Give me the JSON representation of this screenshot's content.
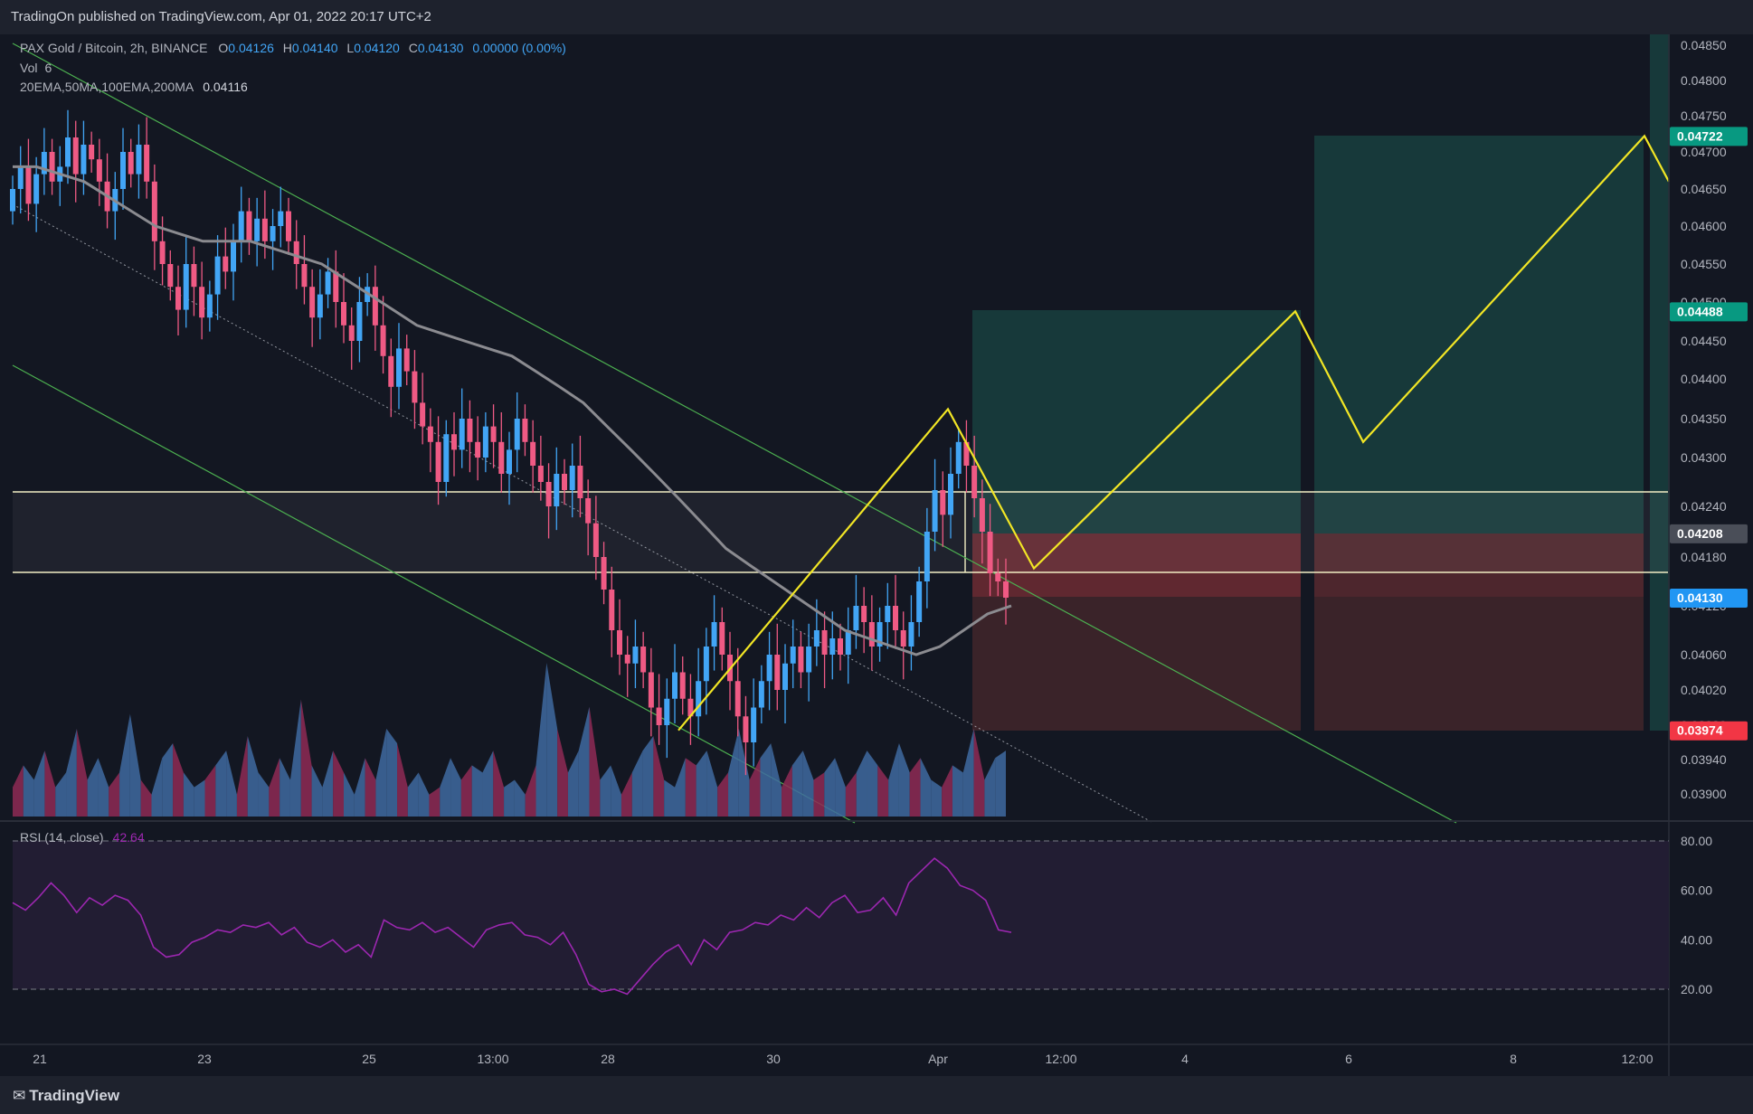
{
  "header": {
    "published": "TradingOn published on TradingView.com, Apr 01, 2022 20:17 UTC+2"
  },
  "legend": {
    "symbol": "PAX Gold / Bitcoin, 2h, BINANCE",
    "o_label": "O",
    "o_value": "0.04126",
    "h_label": "H",
    "h_value": "0.04140",
    "l_label": "L",
    "l_value": "0.04120",
    "c_label": "C",
    "c_value": "0.04130",
    "change": "0.00000 (0.00%)",
    "vol_label": "Vol",
    "vol_value": "6",
    "ma_label": "20EMA,50MA,100EMA,200MA",
    "ma_value": "0.04116",
    "rsi_label": "RSI (14, close)",
    "rsi_value": "42.64"
  },
  "footer": {
    "brand": "TradingView"
  },
  "colors": {
    "background": "#131722",
    "bull": "#42a5f5",
    "bear": "#ef5a84",
    "target_zone": "#17393a",
    "stop_zone": "#3a2329",
    "rsi_band": "#221d33",
    "rsi_line": "#9c27b0",
    "projection": "#f2e625",
    "channel": "#4caf50",
    "ma_line": "#8b8b90",
    "level_line": "#f2edc4"
  },
  "chart_data": [
    {
      "type": "candlestick",
      "title": "PAX Gold / Bitcoin, 2h, BINANCE",
      "x_ticks": [
        "21",
        "23",
        "25",
        "13:00",
        "28",
        "30",
        "Apr",
        "12:00",
        "4",
        "6",
        "8",
        "12:00"
      ],
      "y_ticks": [
        "0.04850",
        "0.04800",
        "0.04750",
        "0.04700",
        "0.04650",
        "0.04600",
        "0.04550",
        "0.04500",
        "0.04450",
        "0.04400",
        "0.04350",
        "0.04300",
        "0.04240",
        "0.04180",
        "0.04120",
        "0.04060",
        "0.04020",
        "0.03980",
        "0.03940",
        "0.03900"
      ],
      "ylim": [
        0.0387,
        0.0487
      ],
      "price_badges": [
        {
          "label": "0.04722",
          "color": "#089981"
        },
        {
          "label": "0.04488",
          "color": "#089981"
        },
        {
          "label": "0.04208",
          "color": "#4a4e58"
        },
        {
          "label": "0.04130",
          "color": "#2196f3"
        },
        {
          "label": "0.03974",
          "color": "#f23645"
        }
      ],
      "close_series": [
        0.0465,
        0.0468,
        0.0463,
        0.0467,
        0.047,
        0.0466,
        0.0468,
        0.0472,
        0.0467,
        0.0471,
        0.0469,
        0.0466,
        0.0462,
        0.0465,
        0.047,
        0.0467,
        0.0471,
        0.0466,
        0.0458,
        0.0455,
        0.0452,
        0.0449,
        0.0455,
        0.0452,
        0.0448,
        0.0451,
        0.0456,
        0.0454,
        0.0458,
        0.0462,
        0.0458,
        0.0461,
        0.0458,
        0.046,
        0.0462,
        0.0458,
        0.0455,
        0.0452,
        0.0448,
        0.0451,
        0.0454,
        0.045,
        0.0447,
        0.0445,
        0.045,
        0.0452,
        0.0447,
        0.0443,
        0.0439,
        0.0444,
        0.0441,
        0.0437,
        0.0434,
        0.0432,
        0.0427,
        0.0433,
        0.0431,
        0.0435,
        0.0432,
        0.043,
        0.0434,
        0.0432,
        0.0428,
        0.0431,
        0.0435,
        0.0432,
        0.0429,
        0.0427,
        0.0424,
        0.0428,
        0.0426,
        0.0429,
        0.0425,
        0.0422,
        0.0418,
        0.0414,
        0.0409,
        0.0406,
        0.0405,
        0.0407,
        0.0404,
        0.04,
        0.0398,
        0.0401,
        0.0404,
        0.0401,
        0.0399,
        0.0403,
        0.0407,
        0.041,
        0.0406,
        0.0403,
        0.0399,
        0.0396,
        0.04,
        0.0403,
        0.0406,
        0.0402,
        0.0405,
        0.0407,
        0.0404,
        0.0407,
        0.0409,
        0.0406,
        0.0408,
        0.0406,
        0.0409,
        0.0412,
        0.041,
        0.0407,
        0.041,
        0.0412,
        0.0409,
        0.0407,
        0.041,
        0.0415,
        0.0421,
        0.0426,
        0.0423,
        0.0428,
        0.0432,
        0.0429,
        0.0425,
        0.0421,
        0.0416,
        0.0415,
        0.0413
      ],
      "volume_series": [
        4,
        7,
        5,
        9,
        4,
        6,
        12,
        5,
        8,
        4,
        6,
        14,
        5,
        3,
        8,
        10,
        6,
        4,
        5,
        7,
        9,
        3,
        11,
        6,
        4,
        8,
        5,
        16,
        7,
        4,
        9,
        6,
        3,
        8,
        5,
        12,
        10,
        4,
        6,
        3,
        4,
        8,
        5,
        7,
        6,
        9,
        4,
        5,
        3,
        7,
        21,
        12,
        6,
        9,
        15,
        5,
        7,
        3,
        6,
        9,
        11,
        5,
        4,
        8,
        7,
        9,
        4,
        6,
        12,
        5,
        8,
        10,
        4,
        7,
        9,
        5,
        6,
        8,
        4,
        6,
        9,
        7,
        5,
        10,
        6,
        8,
        5,
        4,
        7,
        6,
        12,
        5,
        8,
        9
      ],
      "ma_series": [
        0.0468,
        0.0468,
        0.0467,
        0.0466,
        0.0464,
        0.0462,
        0.046,
        0.0459,
        0.0458,
        0.0458,
        0.0458,
        0.0457,
        0.0456,
        0.0455,
        0.0453,
        0.0451,
        0.0449,
        0.0447,
        0.0446,
        0.0445,
        0.0444,
        0.0443,
        0.0441,
        0.0439,
        0.0437,
        0.0434,
        0.0431,
        0.0428,
        0.0425,
        0.0422,
        0.0419,
        0.0417,
        0.0415,
        0.0413,
        0.0411,
        0.0409,
        0.0408,
        0.0407,
        0.0406,
        0.0407,
        0.0409,
        0.0411,
        0.0412
      ],
      "rsi_series": [
        55,
        52,
        57,
        63,
        58,
        51,
        57,
        54,
        58,
        56,
        50,
        37,
        33,
        34,
        39,
        41,
        44,
        43,
        46,
        45,
        47,
        42,
        45,
        39,
        37,
        40,
        35,
        38,
        33,
        48,
        45,
        44,
        47,
        43,
        45,
        41,
        37,
        44,
        46,
        47,
        42,
        41,
        38,
        43,
        34,
        22,
        19,
        20,
        18,
        24,
        30,
        35,
        38,
        30,
        40,
        36,
        43,
        44,
        47,
        46,
        50,
        48,
        53,
        49,
        55,
        58,
        51,
        52,
        57,
        50,
        63,
        68,
        73,
        69,
        62,
        60,
        56,
        44,
        43
      ],
      "rsi_levels": {
        "upper": 80,
        "lower": 20,
        "labels": [
          "80.00",
          "60.00",
          "40.00",
          "20.00"
        ]
      },
      "projection_path": [
        0.03974,
        0.04362,
        0.04166,
        0.04488,
        0.0432,
        0.04722,
        0.0466
      ]
    }
  ]
}
